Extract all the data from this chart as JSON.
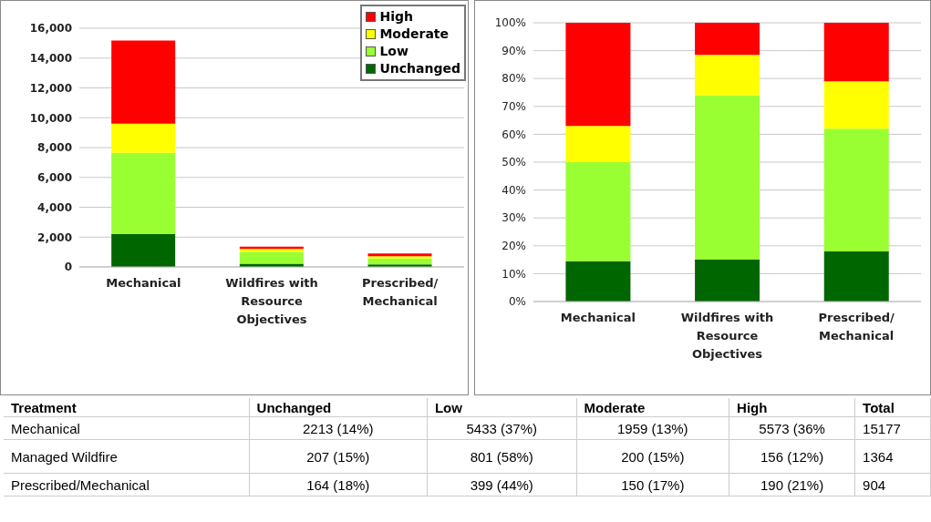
{
  "chart_data": [
    {
      "type": "bar",
      "stacked": true,
      "categories": [
        "Mechanical",
        "Wildfires with Resource Objectives",
        "Prescribed/ Mechanical"
      ],
      "series": [
        {
          "name": "Unchanged",
          "color": "#006600",
          "values": [
            2213,
            207,
            164
          ],
          "value_labels": [
            "2213 (14%)",
            "207 (15%)",
            "164 (18%)"
          ]
        },
        {
          "name": "Low",
          "color": "#99ff33",
          "values": [
            5433,
            801,
            399
          ],
          "value_labels": [
            "5433 (37%)",
            "801 (58%)",
            "399 (44%)"
          ]
        },
        {
          "name": "Moderate",
          "color": "#ffff00",
          "values": [
            1959,
            200,
            150
          ],
          "value_labels": [
            "1959 (13%)",
            "200 (15%)",
            "150 (17%)"
          ]
        },
        {
          "name": "High",
          "color": "#ff0000",
          "values": [
            5573,
            156,
            190
          ],
          "value_labels": [
            "5573 (36%",
            "156 (12%)",
            "190 (21%)"
          ]
        }
      ],
      "totals": [
        "15177",
        "1364",
        "904"
      ],
      "ylim": [
        0,
        16000
      ],
      "yticks": [
        {
          "value": 0,
          "label": "0"
        },
        {
          "value": 2000,
          "label": "2,000"
        },
        {
          "value": 4000,
          "label": "4,000"
        },
        {
          "value": 6000,
          "label": "6,000"
        },
        {
          "value": 8000,
          "label": "8,000"
        },
        {
          "value": 10000,
          "label": "10,000"
        },
        {
          "value": 12000,
          "label": "12,000"
        },
        {
          "value": 14000,
          "label": "14,000"
        },
        {
          "value": 16000,
          "label": "16,000"
        }
      ],
      "grid": "y",
      "legend": "top right"
    },
    {
      "type": "bar",
      "stacked": true,
      "categories": [
        "Mechanical",
        "Wildfires with Resource Objectives",
        "Prescribed/ Mechanical"
      ],
      "series": [
        {
          "color": "#006600",
          "values": [
            14.5,
            15,
            18
          ]
        },
        {
          "color": "#99ff33",
          "values": [
            35.5,
            59,
            44
          ]
        },
        {
          "color": "#ffff00",
          "values": [
            13,
            14.5,
            17
          ]
        },
        {
          "color": "#ff0000",
          "values": [
            37,
            11.5,
            21
          ]
        }
      ],
      "ylim": [
        0,
        100
      ],
      "yticks": [
        {
          "value": 0,
          "label": "0%"
        },
        {
          "value": 10,
          "label": "10%"
        },
        {
          "value": 20,
          "label": "20%"
        },
        {
          "value": 30,
          "label": "30%"
        },
        {
          "value": 40,
          "label": "40%"
        },
        {
          "value": 50,
          "label": "50%"
        },
        {
          "value": 60,
          "label": "60%"
        },
        {
          "value": 70,
          "label": "70%"
        },
        {
          "value": 80,
          "label": "80%"
        },
        {
          "value": 90,
          "label": "90%"
        },
        {
          "value": 100,
          "label": "100%"
        }
      ],
      "grid": "y"
    },
    {
      "type": "other",
      "xlabel": "Treatment",
      "annotations": [
        "Total"
      ],
      "categories": [
        "Mechanical",
        "Managed Wildfire",
        "Prescribed/Mechanical"
      ]
    }
  ]
}
